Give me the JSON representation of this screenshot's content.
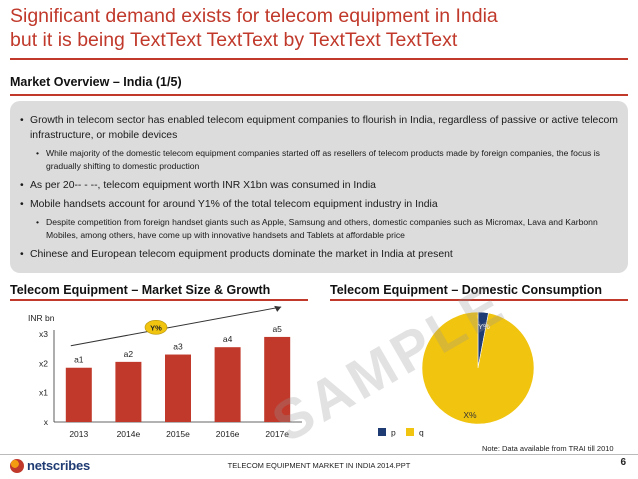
{
  "title": {
    "line1": "Significant demand exists for telecom equipment in India",
    "line2": "but it is being TextText TextText by TextText TextText"
  },
  "overview": {
    "heading": "Market Overview – India (1/5)",
    "bullets": [
      "Growth in telecom sector has enabled telecom equipment companies to flourish in India, regardless of passive or active telecom infrastructure, or mobile devices",
      "While majority of the domestic telecom equipment companies started off as resellers of telecom products made by foreign companies, the focus is gradually shifting to domestic production",
      "As per 20-- - --, telecom equipment worth INR X1bn was consumed in India",
      "Mobile handsets account for around Y1% of the total telecom equipment industry in India",
      "Despite competition from foreign handset giants such as Apple, Samsung and others, domestic companies such as Micromax, Lava and Karbonn Mobiles, among others, have come up with innovative handsets and Tablets at affordable price",
      "Chinese and European telecom equipment products dominate the market in India at present"
    ]
  },
  "market_chart": {
    "heading": "Telecom Equipment – Market Size & Growth"
  },
  "consumption_chart": {
    "heading": "Telecom Equipment – Domestic Consumption"
  },
  "chart_data": [
    {
      "type": "bar",
      "title": "Telecom Equipment – Market Size & Growth",
      "unit_label": "INR bn",
      "categories": [
        "2013",
        "2014e",
        "2015e",
        "2016e",
        "2017e"
      ],
      "values": [
        1.85,
        2.05,
        2.3,
        2.55,
        2.9
      ],
      "data_labels": [
        "a1",
        "a2",
        "a3",
        "a4",
        "a5"
      ],
      "y_ticks": [
        "x",
        "x1",
        "x2",
        "x3"
      ],
      "ylim": [
        0,
        3
      ],
      "growth_label": "Y%",
      "color": "#c0392b"
    },
    {
      "type": "pie",
      "title": "Telecom Equipment – Domestic Consumption",
      "slices": [
        {
          "label": "p",
          "value": 3,
          "text": "Y%",
          "color": "#1f3b73"
        },
        {
          "label": "q",
          "value": 97,
          "text": "X%",
          "color": "#f1c40f"
        }
      ]
    }
  ],
  "note": "Note: Data available from TRAI till 2010",
  "watermark": "SAMPLE",
  "footer": {
    "text": "TELECOM EQUIPMENT MARKET IN INDIA 2014.PPT",
    "page": "6",
    "logo": "netscribes"
  }
}
